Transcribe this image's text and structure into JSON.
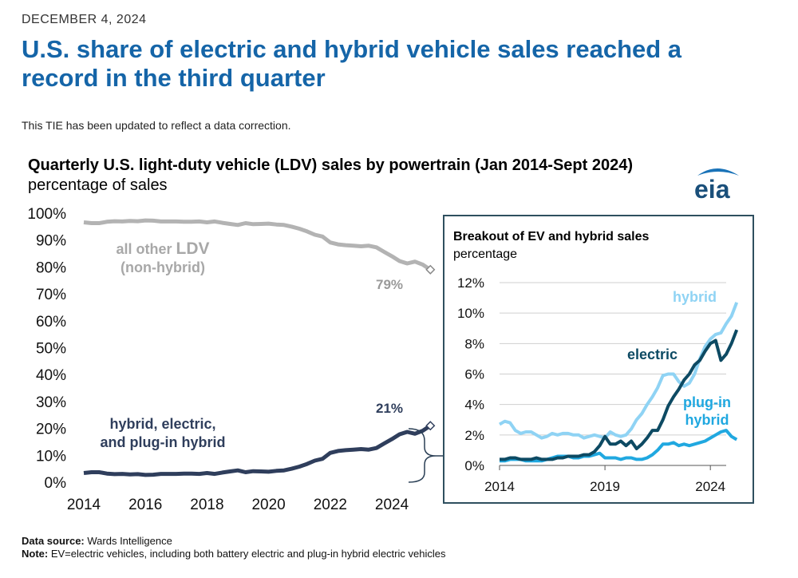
{
  "header": {
    "date": "DECEMBER 4, 2024",
    "title": "U.S. share of electric and hybrid vehicle sales reached a record in the third quarter",
    "update_note": "This TIE has been updated to reflect a data correction."
  },
  "logo_text": "eia",
  "footer": {
    "source_label": "Data source:",
    "source_text": "Wards Intelligence",
    "note_label": "Note:",
    "note_text": "EV=electric vehicles, including both battery electric and plug-in hybrid electric vehicles"
  },
  "colors": {
    "other": "#b3b3b3",
    "combined": "#2f3e5c",
    "hybrid": "#8fd3f4",
    "electric": "#0d4a63",
    "plugin": "#20a8e0",
    "title": "#1565a8",
    "frame": "#2f4f5f"
  },
  "chart_data": [
    {
      "type": "line",
      "title": "Quarterly U.S. light-duty vehicle (LDV) sales by powertrain (Jan 2014-Sept 2024)",
      "subtitle": "percentage of sales",
      "ylim": [
        0,
        100
      ],
      "xlim": [
        2014,
        2024.75
      ],
      "yticks": [
        "0%",
        "10%",
        "20%",
        "30%",
        "40%",
        "50%",
        "60%",
        "70%",
        "80%",
        "90%",
        "100%"
      ],
      "xticks": [
        "2014",
        "2016",
        "2018",
        "2020",
        "2022",
        "2024"
      ],
      "series": [
        {
          "name": "all other LDV (non-hybrid)",
          "label_line1_a": "all other ",
          "label_line1_b": "LDV",
          "label_line2": "(non-hybrid)",
          "end_label": "79%",
          "values": [
            96.6,
            96.3,
            96.3,
            96.8,
            97.0,
            96.9,
            97.1,
            97.0,
            97.3,
            97.2,
            96.9,
            96.9,
            96.9,
            96.8,
            96.8,
            96.9,
            96.6,
            96.9,
            96.4,
            96.0,
            95.6,
            96.3,
            95.9,
            96.0,
            96.1,
            95.8,
            95.6,
            95.0,
            94.2,
            93.2,
            92.0,
            91.3,
            89.1,
            88.4,
            88.1,
            87.9,
            87.7,
            87.9,
            87.3,
            85.6,
            84.0,
            82.2,
            81.3,
            82.0,
            80.9,
            79.0
          ]
        },
        {
          "name": "hybrid, electric, and plug-in hybrid",
          "label_line1": "hybrid, electric,",
          "label_line2": "and plug-in hybrid",
          "end_label": "21%",
          "values": [
            3.4,
            3.7,
            3.7,
            3.2,
            3.0,
            3.1,
            2.9,
            3.0,
            2.7,
            2.8,
            3.1,
            3.1,
            3.1,
            3.2,
            3.2,
            3.1,
            3.4,
            3.1,
            3.6,
            4.0,
            4.4,
            3.7,
            4.1,
            4.0,
            3.9,
            4.2,
            4.4,
            5.0,
            5.8,
            6.8,
            8.0,
            8.7,
            10.9,
            11.6,
            11.9,
            12.1,
            12.3,
            12.1,
            12.7,
            14.4,
            16.0,
            17.8,
            18.7,
            18.0,
            19.1,
            21.0
          ]
        }
      ]
    },
    {
      "type": "line",
      "title": "Breakout of EV and hybrid sales",
      "subtitle": "percentage",
      "ylim": [
        0,
        12
      ],
      "xlim": [
        2014,
        2024.75
      ],
      "yticks": [
        "0%",
        "2%",
        "4%",
        "6%",
        "8%",
        "10%",
        "12%"
      ],
      "xticks": [
        "2014",
        "2019",
        "2024"
      ],
      "series": [
        {
          "name": "hybrid",
          "values": [
            2.7,
            2.9,
            2.8,
            2.3,
            2.1,
            2.2,
            2.2,
            2.0,
            1.8,
            1.9,
            2.1,
            2.0,
            2.1,
            2.1,
            2.0,
            2.0,
            1.8,
            1.9,
            2.0,
            1.9,
            1.8,
            2.2,
            2.0,
            1.9,
            2.0,
            2.4,
            3.0,
            3.4,
            4.0,
            4.5,
            5.1,
            5.9,
            6.0,
            6.0,
            5.5,
            5.2,
            5.4,
            6.0,
            7.0,
            7.8,
            8.3,
            8.6,
            8.7,
            9.3,
            9.8,
            10.7
          ]
        },
        {
          "name": "electric",
          "values": [
            0.4,
            0.4,
            0.5,
            0.5,
            0.4,
            0.4,
            0.4,
            0.5,
            0.4,
            0.4,
            0.4,
            0.5,
            0.5,
            0.6,
            0.6,
            0.6,
            0.7,
            0.7,
            0.9,
            1.3,
            1.9,
            1.4,
            1.4,
            1.6,
            1.3,
            1.6,
            1.1,
            1.4,
            1.8,
            2.3,
            2.3,
            3.0,
            3.9,
            4.5,
            5.0,
            5.6,
            6.0,
            6.6,
            6.9,
            7.5,
            8.0,
            8.2,
            6.9,
            7.3,
            8.0,
            8.9
          ]
        },
        {
          "name": "plug-in hybrid",
          "label_line1": "plug-in",
          "label_line2": "hybrid",
          "values": [
            0.3,
            0.3,
            0.4,
            0.4,
            0.4,
            0.3,
            0.3,
            0.3,
            0.3,
            0.4,
            0.5,
            0.6,
            0.6,
            0.6,
            0.5,
            0.5,
            0.6,
            0.6,
            0.7,
            0.8,
            0.5,
            0.5,
            0.5,
            0.4,
            0.5,
            0.5,
            0.4,
            0.4,
            0.5,
            0.7,
            1.0,
            1.4,
            1.4,
            1.5,
            1.3,
            1.4,
            1.3,
            1.4,
            1.5,
            1.6,
            1.8,
            2.0,
            2.2,
            2.3,
            1.9,
            1.7
          ]
        }
      ]
    }
  ]
}
